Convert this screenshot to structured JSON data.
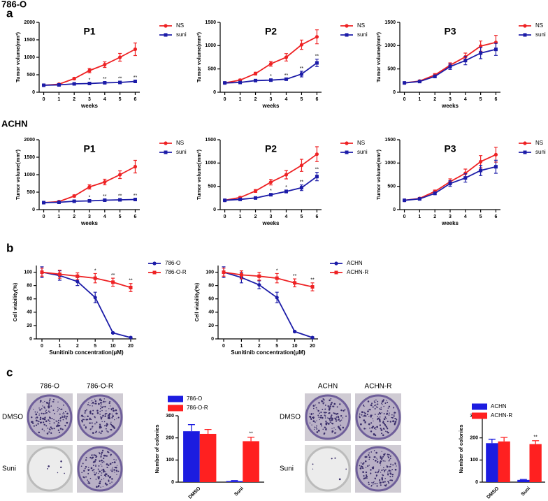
{
  "figure": {
    "panel_labels": [
      "a",
      "b",
      "c"
    ],
    "row_titles": [
      "786-O",
      "ACHN"
    ],
    "colony_photos": [
      {
        "columns": [
          "786-O",
          "786-O-R"
        ],
        "rows": [
          "DMSO",
          "Suni"
        ]
      },
      {
        "columns": [
          "ACHN",
          "ACHN-R"
        ],
        "rows": [
          "DMSO",
          "Suni"
        ]
      }
    ]
  },
  "chart_data": [
    {
      "type": "line",
      "title": "P1",
      "xlabel": "weeks",
      "ylabel": "Tumor volume(mm³)",
      "x": [
        0,
        1,
        2,
        3,
        4,
        5,
        6
      ],
      "xlim": [
        -0.3,
        6.3
      ],
      "xticks": [
        0,
        1,
        2,
        3,
        4,
        5,
        6
      ],
      "ylim": [
        0,
        2000
      ],
      "yticks": [
        0,
        500,
        1000,
        1500,
        2000
      ],
      "series": [
        {
          "name": "NS",
          "color": "#ee2224",
          "marker": "circle",
          "values": [
            200,
            230,
            390,
            620,
            790,
            1000,
            1230
          ],
          "errors": [
            10,
            20,
            30,
            60,
            80,
            110,
            180
          ]
        },
        {
          "name": "suni",
          "color": "#1c1ca8",
          "marker": "square",
          "values": [
            200,
            210,
            240,
            250,
            270,
            280,
            310
          ],
          "errors": [
            10,
            15,
            20,
            20,
            25,
            30,
            30
          ],
          "sig": [
            null,
            null,
            null,
            "*",
            "**",
            "**",
            "**"
          ]
        }
      ]
    },
    {
      "type": "line",
      "title": "P2",
      "xlabel": "weeks",
      "ylabel": "Tumor volume(mm³)",
      "x": [
        0,
        1,
        2,
        3,
        4,
        5,
        6
      ],
      "xlim": [
        -0.3,
        6.3
      ],
      "xticks": [
        0,
        1,
        2,
        3,
        4,
        5,
        6
      ],
      "ylim": [
        0,
        1500
      ],
      "yticks": [
        0,
        500,
        1000,
        1500
      ],
      "series": [
        {
          "name": "NS",
          "color": "#ee2224",
          "marker": "circle",
          "values": [
            200,
            260,
            400,
            610,
            750,
            1020,
            1190
          ],
          "errors": [
            10,
            20,
            30,
            50,
            80,
            100,
            150
          ]
        },
        {
          "name": "suni",
          "color": "#1c1ca8",
          "marker": "square",
          "values": [
            200,
            210,
            250,
            260,
            280,
            390,
            630
          ],
          "errors": [
            10,
            10,
            20,
            20,
            20,
            60,
            80
          ],
          "sig": [
            null,
            null,
            null,
            "*",
            "**",
            "**",
            "**"
          ]
        }
      ]
    },
    {
      "type": "line",
      "title": "P3",
      "xlabel": "weeks",
      "ylabel": "Tumor volume(mm³)",
      "x": [
        0,
        1,
        2,
        3,
        4,
        5,
        6
      ],
      "xlim": [
        -0.3,
        6.3
      ],
      "xticks": [
        0,
        1,
        2,
        3,
        4,
        5,
        6
      ],
      "ylim": [
        0,
        1500
      ],
      "yticks": [
        0,
        500,
        1000,
        1500
      ],
      "series": [
        {
          "name": "NS",
          "color": "#ee2224",
          "marker": "circle",
          "values": [
            200,
            240,
            370,
            580,
            760,
            990,
            1070
          ],
          "errors": [
            10,
            20,
            30,
            50,
            80,
            110,
            150
          ]
        },
        {
          "name": "suni",
          "color": "#1c1ca8",
          "marker": "square",
          "values": [
            200,
            230,
            340,
            550,
            680,
            840,
            920
          ],
          "errors": [
            10,
            15,
            30,
            60,
            90,
            120,
            130
          ]
        }
      ]
    },
    {
      "type": "line",
      "title": "P1",
      "xlabel": "weeks",
      "ylabel": "Tumor volume(mm³)",
      "x": [
        0,
        1,
        2,
        3,
        4,
        5,
        6
      ],
      "xlim": [
        -0.3,
        6.3
      ],
      "xticks": [
        0,
        1,
        2,
        3,
        4,
        5,
        6
      ],
      "ylim": [
        0,
        2000
      ],
      "yticks": [
        0,
        500,
        1000,
        1500,
        2000
      ],
      "series": [
        {
          "name": "NS",
          "color": "#ee2224",
          "marker": "circle",
          "values": [
            200,
            230,
            390,
            650,
            790,
            1000,
            1230
          ],
          "errors": [
            10,
            20,
            30,
            60,
            80,
            110,
            180
          ]
        },
        {
          "name": "suni",
          "color": "#1c1ca8",
          "marker": "square",
          "values": [
            200,
            210,
            240,
            250,
            270,
            280,
            290
          ],
          "errors": [
            10,
            15,
            20,
            20,
            25,
            30,
            30
          ],
          "sig": [
            null,
            null,
            null,
            "*",
            "**",
            "**",
            "**"
          ]
        }
      ]
    },
    {
      "type": "line",
      "title": "P2",
      "xlabel": "weeks",
      "ylabel": "Tumor volume(mm³)",
      "x": [
        0,
        1,
        2,
        3,
        4,
        5,
        6
      ],
      "xlim": [
        -0.3,
        6.3
      ],
      "xticks": [
        0,
        1,
        2,
        3,
        4,
        5,
        6
      ],
      "ylim": [
        0,
        1500
      ],
      "yticks": [
        0,
        500,
        1000,
        1500
      ],
      "series": [
        {
          "name": "NS",
          "color": "#ee2224",
          "marker": "circle",
          "values": [
            200,
            260,
            400,
            590,
            750,
            950,
            1190
          ],
          "errors": [
            10,
            20,
            30,
            60,
            90,
            130,
            160
          ]
        },
        {
          "name": "suni",
          "color": "#1c1ca8",
          "marker": "square",
          "values": [
            200,
            220,
            250,
            320,
            390,
            470,
            710
          ],
          "errors": [
            10,
            10,
            20,
            20,
            30,
            60,
            90
          ],
          "sig": [
            null,
            null,
            null,
            "*",
            "*",
            "**",
            "**"
          ]
        }
      ]
    },
    {
      "type": "line",
      "title": "P3",
      "xlabel": "weeks",
      "ylabel": "Tumor volume(mm³)",
      "x": [
        0,
        1,
        2,
        3,
        4,
        5,
        6
      ],
      "xlim": [
        -0.3,
        6.3
      ],
      "xticks": [
        0,
        1,
        2,
        3,
        4,
        5,
        6
      ],
      "ylim": [
        0,
        1500
      ],
      "yticks": [
        0,
        500,
        1000,
        1500
      ],
      "series": [
        {
          "name": "NS",
          "color": "#ee2224",
          "marker": "circle",
          "values": [
            200,
            240,
            390,
            600,
            780,
            1030,
            1180
          ],
          "errors": [
            10,
            20,
            30,
            60,
            90,
            130,
            160
          ]
        },
        {
          "name": "suni",
          "color": "#1c1ca8",
          "marker": "square",
          "values": [
            200,
            230,
            350,
            560,
            680,
            840,
            920
          ],
          "errors": [
            10,
            15,
            30,
            60,
            90,
            110,
            140
          ]
        }
      ]
    },
    {
      "type": "line",
      "xlabel": "Sunitinib concentration(μM)",
      "ylabel": "Cell viability(%)",
      "categories": [
        "0",
        "1",
        "2",
        "5",
        "10",
        "20"
      ],
      "ylim": [
        0,
        110
      ],
      "yticks": [
        0,
        20,
        40,
        60,
        80,
        100
      ],
      "series": [
        {
          "name": "786-O",
          "color": "#1c1ca8",
          "marker": "circle",
          "values": [
            100,
            95,
            86,
            62,
            9,
            2
          ],
          "errors": [
            8,
            7,
            6,
            8,
            1,
            1
          ]
        },
        {
          "name": "786-O-R",
          "color": "#ee2224",
          "marker": "square",
          "values": [
            100,
            97,
            94,
            91,
            85,
            77
          ],
          "errors": [
            6,
            6,
            5,
            7,
            6,
            6
          ],
          "sig": [
            null,
            null,
            null,
            "*",
            "**",
            "**"
          ]
        }
      ]
    },
    {
      "type": "line",
      "xlabel": "Sunitinib concentration(μM)",
      "ylabel": "Cell viability(%)",
      "categories": [
        "0",
        "1",
        "2",
        "5",
        "10",
        "20"
      ],
      "ylim": [
        0,
        110
      ],
      "yticks": [
        0,
        20,
        40,
        60,
        80,
        100
      ],
      "series": [
        {
          "name": "ACHN",
          "color": "#1c1ca8",
          "marker": "circle",
          "values": [
            100,
            92,
            81,
            62,
            11,
            2
          ],
          "errors": [
            8,
            8,
            6,
            8,
            1,
            1
          ]
        },
        {
          "name": "ACHN-R",
          "color": "#ee2224",
          "marker": "square",
          "values": [
            100,
            96,
            94,
            91,
            84,
            78
          ],
          "errors": [
            6,
            6,
            6,
            7,
            6,
            6
          ],
          "sig": [
            null,
            null,
            null,
            "*",
            "**",
            "**"
          ]
        }
      ]
    },
    {
      "type": "bar",
      "ylabel": "Number of colonies",
      "categories": [
        "DMSO",
        "Suni"
      ],
      "ylim": [
        0,
        300
      ],
      "yticks": [
        0,
        100,
        200,
        300
      ],
      "series": [
        {
          "name": "786-O",
          "color": "#1c1ce0",
          "values": [
            230,
            5
          ],
          "errors": [
            30,
            2
          ]
        },
        {
          "name": "786-O-R",
          "color": "#ff2020",
          "values": [
            218,
            185
          ],
          "errors": [
            20,
            18
          ],
          "sig": [
            null,
            "**"
          ]
        }
      ]
    },
    {
      "type": "bar",
      "ylabel": "Number of colonies",
      "categories": [
        "DMSO",
        "Suni"
      ],
      "ylim": [
        0,
        300
      ],
      "yticks": [
        0,
        100,
        200,
        300
      ],
      "series": [
        {
          "name": "ACHN",
          "color": "#1c1ce0",
          "values": [
            176,
            10
          ],
          "errors": [
            18,
            2
          ]
        },
        {
          "name": "ACHN-R",
          "color": "#ff2020",
          "values": [
            184,
            172
          ],
          "errors": [
            18,
            15
          ],
          "sig": [
            null,
            "**"
          ]
        }
      ]
    }
  ]
}
